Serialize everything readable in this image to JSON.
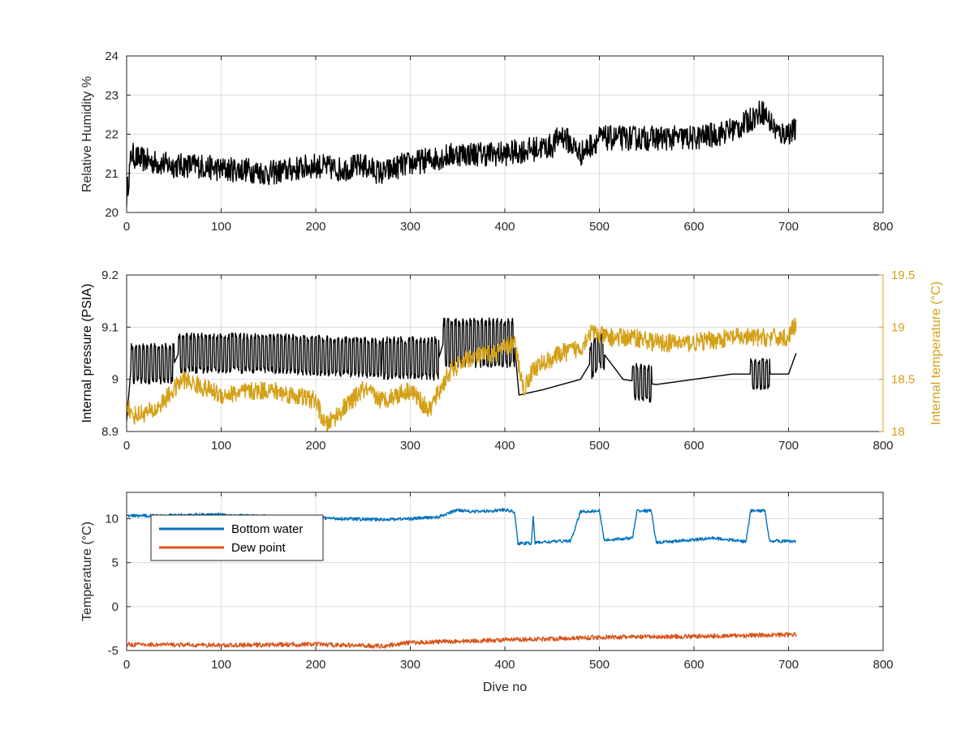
{
  "chart_data": [
    {
      "type": "line",
      "xlabel": "",
      "ylabel": "Relative Humidity %",
      "xlim": [
        0,
        800
      ],
      "ylim": [
        20,
        24
      ],
      "xticks": [
        "0",
        "100",
        "200",
        "300",
        "400",
        "500",
        "600",
        "700",
        "800"
      ],
      "yticks": [
        "20",
        "21",
        "22",
        "23",
        "24"
      ],
      "grid": true,
      "series": [
        {
          "color": "#000000",
          "x": [
            0,
            5,
            10,
            25,
            50,
            75,
            100,
            125,
            150,
            175,
            200,
            225,
            250,
            270,
            290,
            310,
            330,
            350,
            375,
            400,
            425,
            450,
            460,
            480,
            500,
            525,
            550,
            575,
            600,
            625,
            650,
            672,
            690,
            708
          ],
          "y": [
            20.4,
            21.5,
            21.4,
            21.3,
            21.2,
            21.2,
            21.1,
            21.1,
            21.0,
            21.1,
            21.2,
            21.1,
            21.2,
            21.0,
            21.2,
            21.3,
            21.4,
            21.5,
            21.5,
            21.5,
            21.6,
            21.7,
            22.0,
            21.5,
            21.9,
            21.9,
            21.9,
            21.9,
            21.9,
            22.0,
            22.2,
            22.6,
            22.0,
            22.1
          ],
          "noise": 0.32
        }
      ]
    },
    {
      "type": "line",
      "xlabel": "",
      "ylabel": "Internal pressure (PSIA)",
      "y2label": "Internal temperature (°C)",
      "xlim": [
        0,
        800
      ],
      "ylim": [
        8.9,
        9.2
      ],
      "y2lim": [
        18,
        19.5
      ],
      "xticks": [
        "0",
        "100",
        "200",
        "300",
        "400",
        "500",
        "600",
        "700",
        "800"
      ],
      "yticks": [
        "8.9",
        "9",
        "9.1",
        "9.2"
      ],
      "y2ticks": [
        "18",
        "18.5",
        "19",
        "19.5"
      ],
      "grid": true,
      "series": [
        {
          "axis": "left",
          "color": "#000000",
          "x": [
            0,
            5,
            50,
            55,
            150,
            270,
            330,
            335,
            410,
            415,
            440,
            480,
            500,
            525,
            560,
            600,
            640,
            700,
            708
          ],
          "y": [
            8.92,
            9.03,
            9.03,
            9.05,
            9.05,
            9.04,
            9.04,
            9.07,
            9.07,
            8.97,
            8.98,
            9.0,
            9.06,
            9.0,
            8.99,
            9.0,
            9.01,
            9.01,
            9.05
          ],
          "oscillation": [
            [
              5,
              50,
              0.065
            ],
            [
              55,
              270,
              0.065
            ],
            [
              270,
              330,
              0.07
            ],
            [
              335,
              410,
              0.08
            ],
            [
              490,
              505,
              0.06
            ],
            [
              535,
              555,
              0.06
            ],
            [
              660,
              680,
              0.05
            ]
          ]
        },
        {
          "axis": "right",
          "color": "#d4a017",
          "x": [
            0,
            5,
            30,
            60,
            100,
            150,
            200,
            210,
            250,
            270,
            300,
            320,
            340,
            360,
            390,
            410,
            420,
            430,
            460,
            480,
            490,
            510,
            540,
            560,
            600,
            640,
            660,
            700,
            708
          ],
          "y": [
            18.3,
            18.15,
            18.2,
            18.5,
            18.35,
            18.4,
            18.3,
            18.05,
            18.4,
            18.3,
            18.4,
            18.2,
            18.55,
            18.7,
            18.75,
            18.85,
            18.4,
            18.6,
            18.75,
            18.8,
            18.95,
            18.9,
            18.9,
            18.85,
            18.85,
            18.9,
            18.9,
            18.9,
            19.05
          ],
          "noise": 0.09
        }
      ]
    },
    {
      "type": "line",
      "xlabel": "Dive no",
      "ylabel": "Temperature (°C)",
      "xlim": [
        0,
        800
      ],
      "ylim": [
        -5,
        13
      ],
      "xticks": [
        "0",
        "100",
        "200",
        "300",
        "400",
        "500",
        "600",
        "700",
        "800"
      ],
      "yticks": [
        "-5",
        "0",
        "5",
        "10"
      ],
      "grid": true,
      "legend": {
        "position": "upper-left",
        "entries": [
          "Bottom water",
          "Dew point"
        ]
      },
      "series": [
        {
          "name": "Bottom water",
          "color": "#0072bd",
          "x": [
            0,
            100,
            110,
            200,
            260,
            300,
            330,
            350,
            370,
            400,
            410,
            414,
            428,
            430,
            432,
            434,
            470,
            480,
            500,
            505,
            510,
            535,
            540,
            555,
            560,
            565,
            600,
            620,
            655,
            660,
            675,
            680,
            708
          ],
          "y": [
            10.3,
            10.5,
            10.4,
            10.1,
            9.9,
            10.0,
            10.2,
            11.0,
            10.8,
            11.0,
            10.8,
            7.2,
            7.2,
            10.4,
            7.2,
            7.3,
            7.5,
            10.8,
            10.9,
            7.6,
            7.6,
            7.8,
            10.9,
            10.9,
            7.3,
            7.3,
            7.6,
            7.8,
            7.4,
            10.9,
            10.9,
            7.5,
            7.4
          ],
          "noise": 0.18
        },
        {
          "name": "Dew point",
          "color": "#d95319",
          "x": [
            0,
            100,
            200,
            270,
            300,
            400,
            500,
            600,
            700,
            708
          ],
          "y": [
            -4.3,
            -4.4,
            -4.3,
            -4.5,
            -4.1,
            -3.8,
            -3.5,
            -3.4,
            -3.2,
            -3.2
          ],
          "noise": 0.25
        }
      ]
    }
  ]
}
